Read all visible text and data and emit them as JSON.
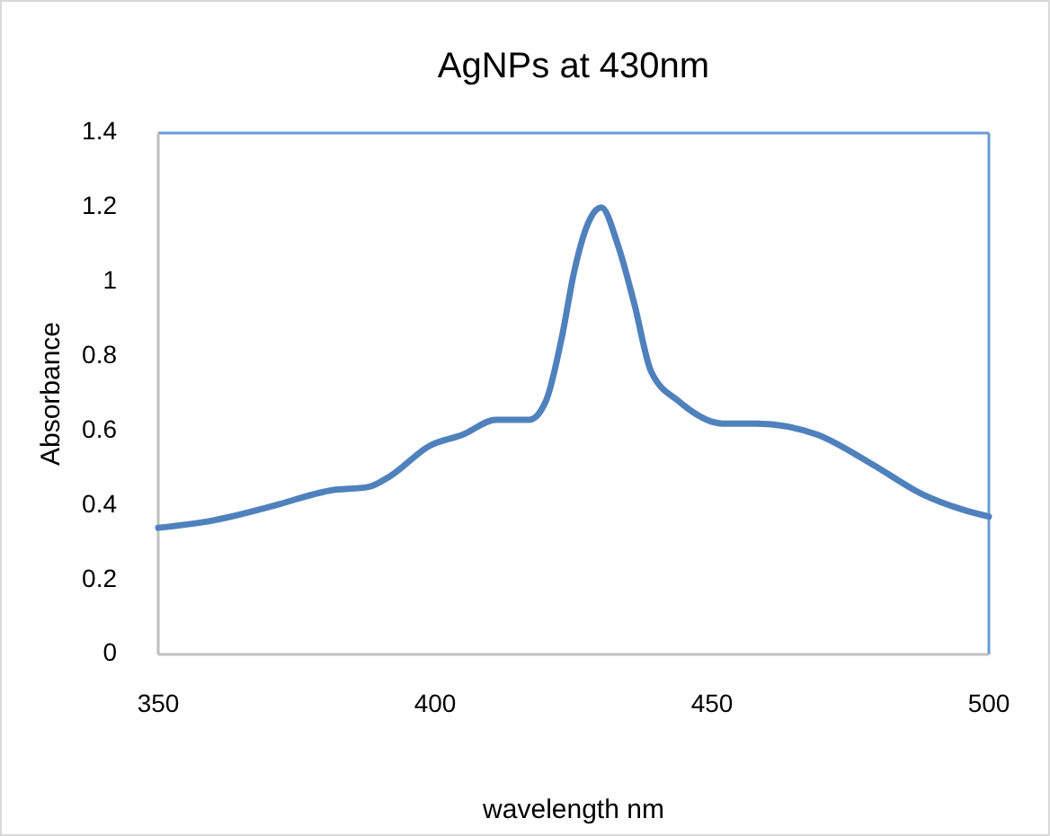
{
  "chart_data": {
    "type": "line",
    "title": "AgNPs at 430nm",
    "xlabel": "wavelength nm",
    "ylabel": "Absorbance",
    "x": [
      350,
      360,
      371,
      381,
      388,
      392,
      399,
      405,
      411,
      417,
      420,
      423,
      425,
      428,
      430,
      433,
      436,
      439,
      444,
      452,
      458,
      469,
      479,
      488,
      495,
      500
    ],
    "series": [
      {
        "color": "#4f81bd",
        "values": [
          0.34,
          0.36,
          0.4,
          0.44,
          0.45,
          0.48,
          0.56,
          0.59,
          0.63,
          0.63,
          0.68,
          0.86,
          1.02,
          1.17,
          1.2,
          1.1,
          0.94,
          0.76,
          0.68,
          0.62,
          0.62,
          0.59,
          0.51,
          0.43,
          0.39,
          0.37
        ]
      }
    ],
    "xlim": [
      350,
      500
    ],
    "xticks": [
      350,
      400,
      450,
      500
    ],
    "ylim": [
      0,
      1.4
    ],
    "yticks": [
      0,
      0.2,
      0.4,
      0.6,
      0.8,
      1,
      1.2,
      1.4
    ],
    "grid": false,
    "marker": "none",
    "line_style": "solid"
  }
}
